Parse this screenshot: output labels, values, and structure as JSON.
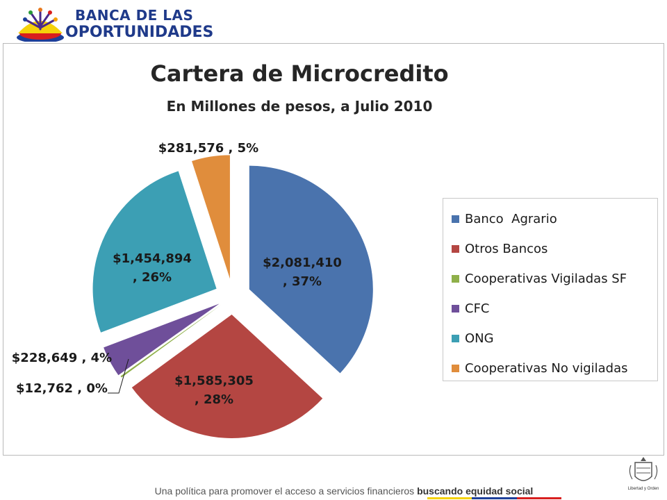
{
  "logo": {
    "line1": "BANCA DE LAS",
    "line2": "OPORTUNIDADES"
  },
  "footer": {
    "text": "Una política para promover el acceso a servicios financieros ",
    "highlight": "buscando equidad social",
    "stripe_colors": [
      "#f5d20a",
      "#1d3f9a",
      "#d81e1e"
    ]
  },
  "seal": {
    "caption": "Libertad y Orden"
  },
  "chart_data": {
    "type": "pie",
    "title": "Cartera de Microcredito",
    "subtitle": "En Millones de pesos, a Julio 2010",
    "legend_position": "right",
    "slices": [
      {
        "name": "Banco  Agrario",
        "value": 2081410,
        "percent": 37,
        "label_value": "$2,081,410",
        "label_percent": ", 37%",
        "color": "#4a73ad"
      },
      {
        "name": "Otros Bancos",
        "value": 1585305,
        "percent": 28,
        "label_value": "$1,585,305",
        "label_percent": ", 28%",
        "color": "#b44642"
      },
      {
        "name": "Cooperativas Vigiladas SF",
        "value": 12762,
        "percent": 0,
        "label": "$12,762 , 0%",
        "color": "#8fb04a"
      },
      {
        "name": "CFC",
        "value": 228649,
        "percent": 4,
        "label": "$228,649 , 4%",
        "color": "#6f4f9a"
      },
      {
        "name": "ONG",
        "value": 1454894,
        "percent": 26,
        "label_value": "$1,454,894",
        "label_percent": ", 26%",
        "color": "#3c9fb4"
      },
      {
        "name": "Cooperativas No vigiladas",
        "value": 281576,
        "percent": 5,
        "label": "$281,576 , 5%",
        "color": "#e08d3c"
      }
    ]
  }
}
